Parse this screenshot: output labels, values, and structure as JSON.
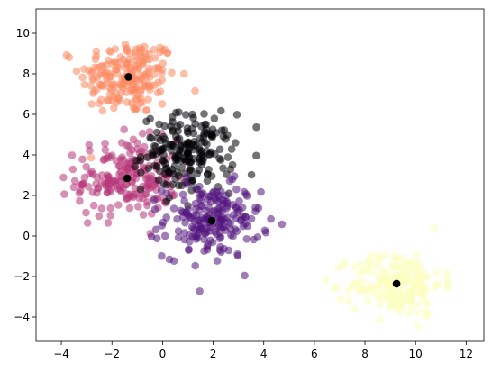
{
  "chart_data": {
    "type": "scatter",
    "title": "",
    "xlabel": "",
    "ylabel": "",
    "xlim": [
      -5,
      12.7
    ],
    "ylim": [
      -5.2,
      11.2
    ],
    "x_ticks": [
      -4,
      -2,
      0,
      2,
      4,
      6,
      8,
      10,
      12
    ],
    "y_ticks": [
      -4,
      -2,
      0,
      2,
      4,
      6,
      8,
      10
    ],
    "grid": false,
    "legend": "none",
    "colormap": "magma",
    "point_alpha": 0.55,
    "clusters": [
      {
        "color": "#fc8961",
        "center": [
          -1.35,
          7.85
        ],
        "spread": [
          0.95,
          0.95
        ],
        "n": 200
      },
      {
        "color": "#b73779",
        "center": [
          -1.4,
          2.85
        ],
        "spread": [
          1.0,
          0.95
        ],
        "n": 200
      },
      {
        "color": "#000004",
        "center": [
          1.0,
          4.1
        ],
        "spread": [
          0.9,
          0.95
        ],
        "n": 200
      },
      {
        "color": "#51127c",
        "center": [
          1.95,
          0.75
        ],
        "spread": [
          0.95,
          0.9
        ],
        "n": 200
      },
      {
        "color": "#fcfdbf",
        "center": [
          9.25,
          -2.35
        ],
        "spread": [
          0.9,
          0.8
        ],
        "n": 200
      }
    ],
    "centroids": [
      {
        "x": -1.35,
        "y": 7.85
      },
      {
        "x": -1.4,
        "y": 2.85
      },
      {
        "x": 1.0,
        "y": 4.1
      },
      {
        "x": 1.95,
        "y": 0.75
      },
      {
        "x": 9.25,
        "y": -2.35
      }
    ],
    "centroid_color": "#000000"
  }
}
